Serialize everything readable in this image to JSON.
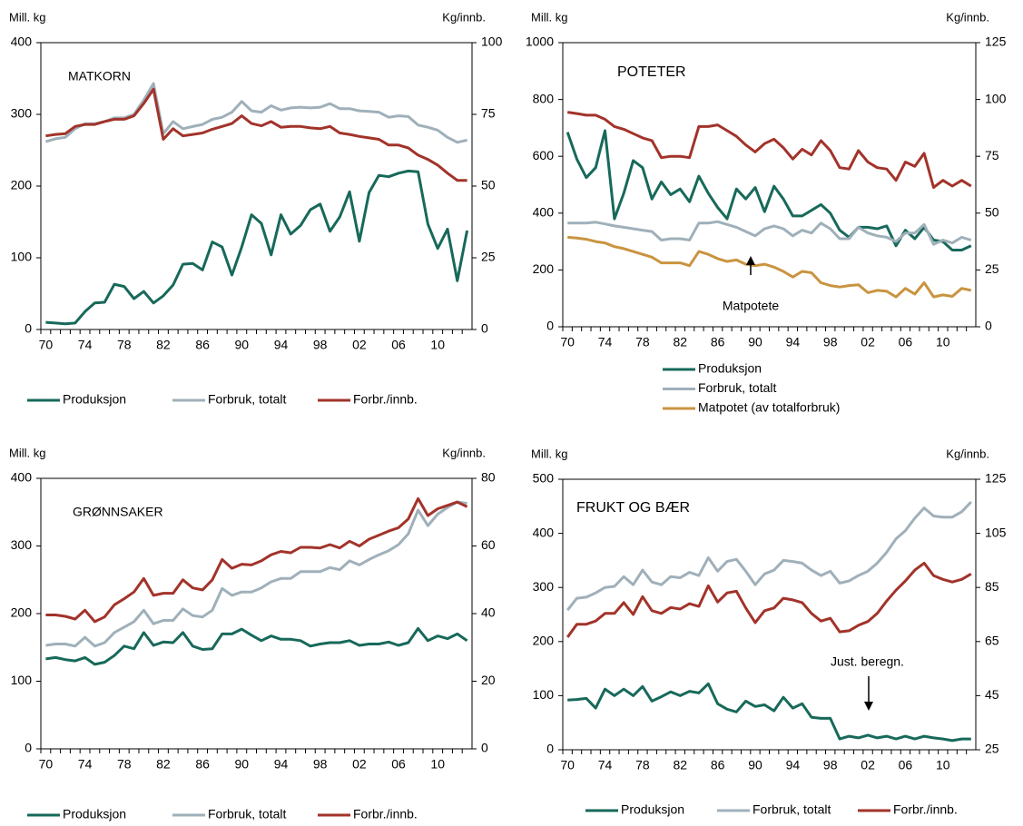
{
  "chart_data": [
    {
      "type": "line",
      "title": "MATKORN",
      "y_label": "Mill. kg",
      "y2_label": "Kg/innb.",
      "categories": [
        "70",
        null,
        null,
        null,
        "74",
        null,
        null,
        null,
        "78",
        null,
        null,
        null,
        "82",
        null,
        null,
        null,
        "86",
        null,
        null,
        null,
        "90",
        null,
        null,
        null,
        "94",
        null,
        null,
        null,
        "98",
        null,
        null,
        null,
        "02",
        null,
        null,
        null,
        "06",
        null,
        null,
        null,
        "10",
        null,
        null,
        null
      ],
      "ylim": [
        0,
        400
      ],
      "yticks": [
        0,
        100,
        200,
        300,
        400
      ],
      "y2lim": [
        0,
        100
      ],
      "y2ticks": [
        0,
        25,
        50,
        75,
        100
      ],
      "series": [
        {
          "name": "Produksjon",
          "color": "#17695a",
          "values": [
            10,
            9,
            8,
            9,
            25,
            37,
            38,
            63,
            60,
            43,
            53,
            37,
            47,
            62,
            91,
            92,
            83,
            122,
            115,
            76,
            115,
            160,
            148,
            104,
            160,
            133,
            145,
            167,
            175,
            137,
            157,
            192,
            123,
            191,
            215,
            213,
            218,
            221,
            220,
            147,
            113,
            140,
            68,
            138
          ]
        },
        {
          "name": "Forbruk, totalt",
          "color": "#9fb0ba",
          "values": [
            262,
            266,
            268,
            280,
            287,
            287,
            290,
            295,
            295,
            300,
            320,
            343,
            273,
            290,
            280,
            283,
            286,
            293,
            296,
            303,
            318,
            305,
            303,
            312,
            306,
            309,
            310,
            309,
            310,
            315,
            308,
            308,
            305,
            304,
            303,
            296,
            298,
            297,
            285,
            282,
            278,
            268,
            261,
            264
          ]
        },
        {
          "name": "Forbr./innb.",
          "color": "#a2332a",
          "axis": "y2",
          "values": [
            67.5,
            68,
            68.3,
            70.8,
            71.5,
            71.5,
            72.5,
            73.3,
            73.3,
            74.5,
            78.8,
            83.8,
            66.3,
            70,
            67.5,
            68,
            68.5,
            69.8,
            70.8,
            71.8,
            74.5,
            71.8,
            71,
            72.5,
            70.5,
            70.8,
            70.8,
            70.3,
            70,
            70.8,
            68.5,
            68,
            67.3,
            66.8,
            66.3,
            64.3,
            64.3,
            63.3,
            60.8,
            59.3,
            57.3,
            54.5,
            52,
            52
          ]
        }
      ]
    },
    {
      "type": "line",
      "title": "POTETER",
      "y_label": "Mill. kg",
      "y2_label": "Kg/innb.",
      "categories": [
        "70",
        null,
        null,
        null,
        "74",
        null,
        null,
        null,
        "78",
        null,
        null,
        null,
        "82",
        null,
        null,
        null,
        "86",
        null,
        null,
        null,
        "90",
        null,
        null,
        null,
        "94",
        null,
        null,
        null,
        "98",
        null,
        null,
        null,
        "02",
        null,
        null,
        null,
        "06",
        null,
        null,
        null,
        "10",
        null,
        null,
        null
      ],
      "ylim": [
        0,
        1000
      ],
      "yticks": [
        0,
        200,
        400,
        600,
        800,
        1000
      ],
      "y2lim": [
        0,
        125
      ],
      "y2ticks": [
        0,
        25,
        50,
        75,
        100,
        125
      ],
      "annotations": [
        {
          "text": "Matpotete"
        }
      ],
      "series": [
        {
          "name": "Produksjon",
          "color": "#17695a",
          "values": [
            685,
            590,
            525,
            560,
            690,
            380,
            470,
            585,
            560,
            450,
            510,
            465,
            485,
            440,
            530,
            470,
            420,
            380,
            485,
            450,
            490,
            405,
            495,
            450,
            390,
            390,
            410,
            430,
            400,
            340,
            315,
            350,
            350,
            345,
            355,
            285,
            340,
            310,
            350,
            305,
            300,
            270,
            270,
            285
          ]
        },
        {
          "name": "Forbruk, totalt",
          "color": "#9fb0ba",
          "values": [
            365,
            365,
            365,
            368,
            362,
            355,
            350,
            345,
            340,
            335,
            305,
            310,
            310,
            305,
            365,
            365,
            370,
            360,
            350,
            335,
            320,
            345,
            355,
            345,
            320,
            340,
            330,
            365,
            345,
            310,
            310,
            350,
            330,
            320,
            315,
            300,
            330,
            330,
            360,
            290,
            305,
            295,
            315,
            305
          ]
        },
        {
          "name": "Forbr./innb.",
          "color": "#a2332a",
          "axis": "y2",
          "legend": false,
          "values": [
            94.4,
            93.8,
            93.1,
            93.1,
            91.3,
            88.1,
            86.9,
            85,
            83.1,
            81.9,
            74.4,
            75,
            75,
            74.4,
            88.1,
            88.1,
            88.8,
            86.3,
            83.8,
            80,
            76.9,
            80.6,
            82.5,
            78.8,
            73.8,
            78.1,
            75.6,
            81.9,
            77.5,
            70,
            69.4,
            77.5,
            72.5,
            70,
            69.4,
            64.4,
            72.5,
            70.6,
            76.3,
            61.3,
            64.4,
            61.9,
            64.4,
            61.9
          ]
        },
        {
          "name": "Matpotet (av totalforbruk)",
          "color": "#c99440",
          "values": [
            315,
            312,
            308,
            300,
            295,
            282,
            275,
            265,
            255,
            245,
            225,
            225,
            225,
            215,
            265,
            255,
            240,
            230,
            235,
            220,
            215,
            220,
            210,
            195,
            175,
            195,
            190,
            155,
            145,
            140,
            145,
            148,
            120,
            128,
            125,
            105,
            135,
            115,
            155,
            105,
            112,
            107,
            135,
            128
          ]
        }
      ]
    },
    {
      "type": "line",
      "title": "GRØNNSAKER",
      "y_label": "Mill. kg",
      "y2_label": "Kg/innb.",
      "categories": [
        "70",
        null,
        null,
        null,
        "74",
        null,
        null,
        null,
        "78",
        null,
        null,
        null,
        "82",
        null,
        null,
        null,
        "86",
        null,
        null,
        null,
        "90",
        null,
        null,
        null,
        "94",
        null,
        null,
        null,
        "98",
        null,
        null,
        null,
        "02",
        null,
        null,
        null,
        "06",
        null,
        null,
        null,
        "10",
        null,
        null,
        null
      ],
      "ylim": [
        0,
        400
      ],
      "yticks": [
        0,
        100,
        200,
        300,
        400
      ],
      "y2lim": [
        0,
        80
      ],
      "y2ticks": [
        0,
        20,
        40,
        60,
        80
      ],
      "series": [
        {
          "name": "Produksjon",
          "color": "#17695a",
          "values": [
            133,
            135,
            132,
            130,
            135,
            125,
            128,
            138,
            152,
            148,
            172,
            153,
            158,
            157,
            172,
            152,
            147,
            148,
            170,
            170,
            177,
            168,
            160,
            167,
            162,
            162,
            160,
            152,
            155,
            157,
            157,
            160,
            153,
            155,
            155,
            158,
            153,
            157,
            178,
            160,
            167,
            163,
            170,
            160
          ]
        },
        {
          "name": "Forbruk, totalt",
          "color": "#9fb0ba",
          "values": [
            153,
            155,
            155,
            152,
            165,
            152,
            157,
            172,
            180,
            188,
            205,
            185,
            190,
            190,
            207,
            197,
            195,
            205,
            237,
            227,
            232,
            232,
            238,
            247,
            252,
            252,
            262,
            262,
            262,
            268,
            265,
            278,
            272,
            280,
            287,
            293,
            302,
            318,
            353,
            330,
            347,
            357,
            365,
            363
          ]
        },
        {
          "name": "Forbr./innb.",
          "color": "#a2332a",
          "axis": "y2",
          "values": [
            39.6,
            39.6,
            39.2,
            38.4,
            41,
            37.6,
            39,
            42.6,
            44.4,
            46.4,
            50.4,
            45.4,
            46,
            46,
            50,
            47.6,
            47,
            50,
            56,
            53.4,
            54.6,
            54.4,
            55.6,
            57.4,
            58.4,
            58,
            59.6,
            59.6,
            59.4,
            60.4,
            59.4,
            61.4,
            60,
            62,
            63.2,
            64.4,
            65.4,
            68,
            74,
            69,
            71,
            72,
            73,
            71.6
          ]
        }
      ]
    },
    {
      "type": "line",
      "title": "FRUKT OG BÆR",
      "y_label": "Mill. kg",
      "y2_label": "Kg/innb.",
      "categories": [
        "70",
        null,
        null,
        null,
        "74",
        null,
        null,
        null,
        "78",
        null,
        null,
        null,
        "82",
        null,
        null,
        null,
        "86",
        null,
        null,
        null,
        "90",
        null,
        null,
        null,
        "94",
        null,
        null,
        null,
        "98",
        null,
        null,
        null,
        "02",
        null,
        null,
        null,
        "06",
        null,
        null,
        null,
        "10",
        null,
        null,
        null
      ],
      "ylim": [
        0,
        500
      ],
      "yticks": [
        0,
        100,
        200,
        300,
        400,
        500
      ],
      "y2lim": [
        25,
        125
      ],
      "y2ticks": [
        25,
        45,
        65,
        85,
        105,
        125
      ],
      "annotations": [
        {
          "text": "Just. beregn."
        }
      ],
      "series": [
        {
          "name": "Produksjon",
          "color": "#17695a",
          "values": [
            92,
            93,
            95,
            77,
            112,
            100,
            112,
            100,
            117,
            90,
            98,
            107,
            100,
            108,
            105,
            122,
            85,
            75,
            70,
            90,
            80,
            83,
            72,
            97,
            77,
            85,
            60,
            58,
            58,
            20,
            25,
            22,
            27,
            22,
            25,
            20,
            25,
            20,
            25,
            22,
            20,
            17,
            20,
            20
          ]
        },
        {
          "name": "Forbruk, totalt",
          "color": "#9fb0ba",
          "values": [
            258,
            280,
            282,
            290,
            300,
            302,
            320,
            305,
            332,
            310,
            305,
            320,
            318,
            328,
            322,
            355,
            330,
            348,
            352,
            330,
            305,
            325,
            332,
            350,
            348,
            345,
            332,
            322,
            330,
            308,
            312,
            322,
            330,
            345,
            365,
            390,
            405,
            428,
            447,
            432,
            430,
            430,
            440,
            458
          ]
        },
        {
          "name": "Forbr./innb.",
          "color": "#a2332a",
          "axis": "y2",
          "values": [
            66.6,
            71.4,
            71.4,
            72.6,
            75.4,
            75.4,
            79.4,
            75,
            81.6,
            76.4,
            75.4,
            77.6,
            77,
            79,
            78,
            85.6,
            79.6,
            83,
            83.6,
            77.4,
            72,
            76.4,
            77.4,
            81,
            80.4,
            79.4,
            75.4,
            72.6,
            73.6,
            68.6,
            69,
            71,
            72.4,
            75.4,
            80,
            84,
            87.4,
            91.4,
            94,
            89.4,
            88,
            87,
            88,
            90
          ]
        }
      ]
    }
  ]
}
